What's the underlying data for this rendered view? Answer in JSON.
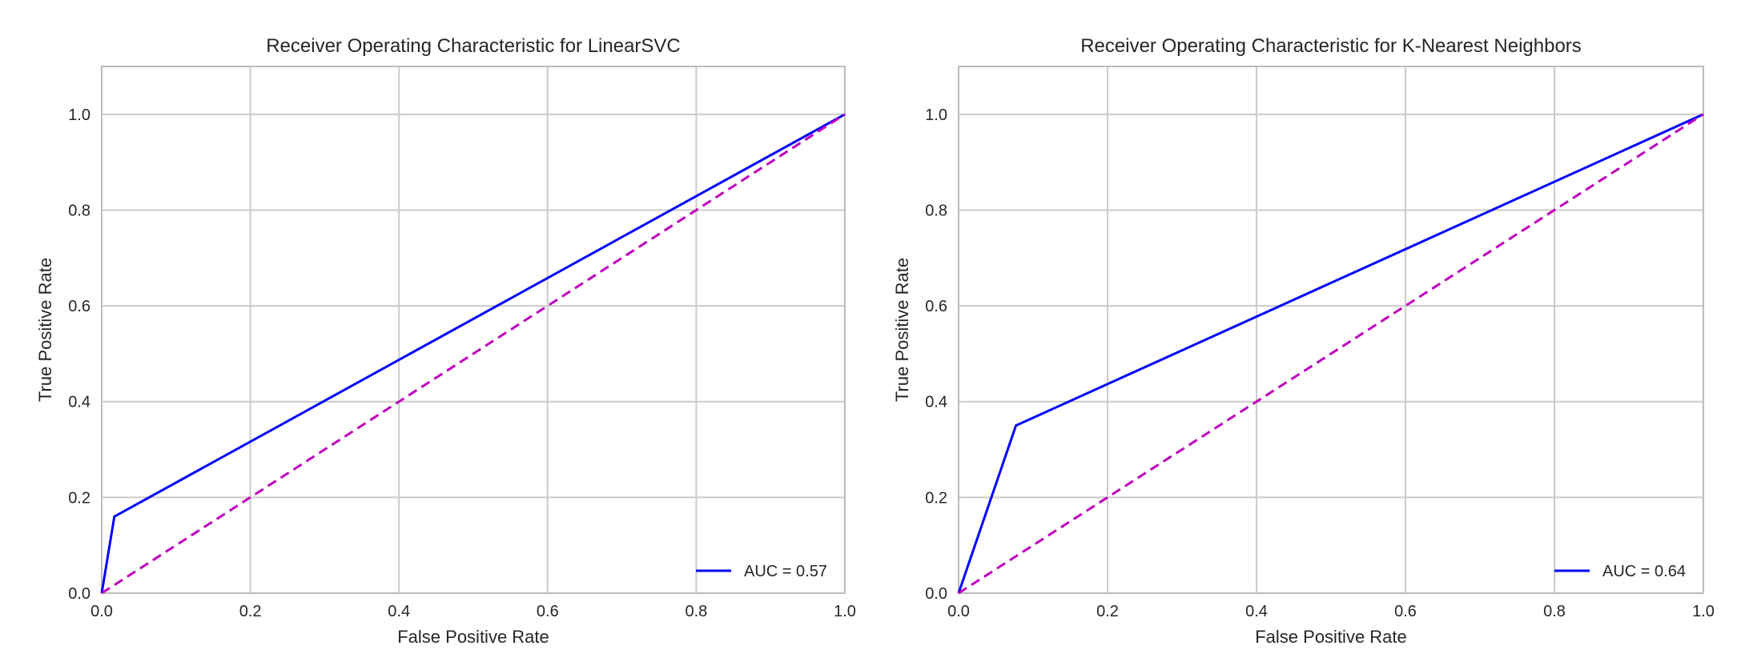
{
  "chart_data": [
    {
      "type": "line",
      "title": "Receiver Operating Characteristic for LinearSVC",
      "xlabel": "False Positive Rate",
      "ylabel": "True Positive Rate",
      "xlim": [
        0,
        1
      ],
      "ylim": [
        0,
        1.1
      ],
      "xticks": [
        "0.0",
        "0.2",
        "0.4",
        "0.6",
        "0.8",
        "1.0"
      ],
      "yticks": [
        "0.0",
        "0.2",
        "0.4",
        "0.6",
        "0.8",
        "1.0"
      ],
      "grid": true,
      "legend": "lower right",
      "series": [
        {
          "name": "AUC = 0.57",
          "style": "solid",
          "color": "#0000ff",
          "x": [
            0.0,
            0.017,
            1.0
          ],
          "y": [
            0.0,
            0.16,
            1.0
          ]
        },
        {
          "style": "dashed",
          "color": "#bf00bf",
          "x": [
            0.0,
            1.0
          ],
          "y": [
            0.0,
            1.0
          ]
        }
      ]
    },
    {
      "type": "line",
      "title": "Receiver Operating Characteristic for K-Nearest Neighbors",
      "xlabel": "False Positive Rate",
      "ylabel": "True Positive Rate",
      "xlim": [
        0,
        1
      ],
      "ylim": [
        0,
        1.1
      ],
      "xticks": [
        "0.0",
        "0.2",
        "0.4",
        "0.6",
        "0.8",
        "1.0"
      ],
      "yticks": [
        "0.0",
        "0.2",
        "0.4",
        "0.6",
        "0.8",
        "1.0"
      ],
      "grid": true,
      "legend": "lower right",
      "series": [
        {
          "name": "AUC = 0.64",
          "style": "solid",
          "color": "#0000ff",
          "x": [
            0.0,
            0.077,
            1.0
          ],
          "y": [
            0.0,
            0.35,
            1.0
          ]
        },
        {
          "style": "dashed",
          "color": "#bf00bf",
          "x": [
            0.0,
            1.0
          ],
          "y": [
            0.0,
            1.0
          ]
        }
      ]
    }
  ]
}
